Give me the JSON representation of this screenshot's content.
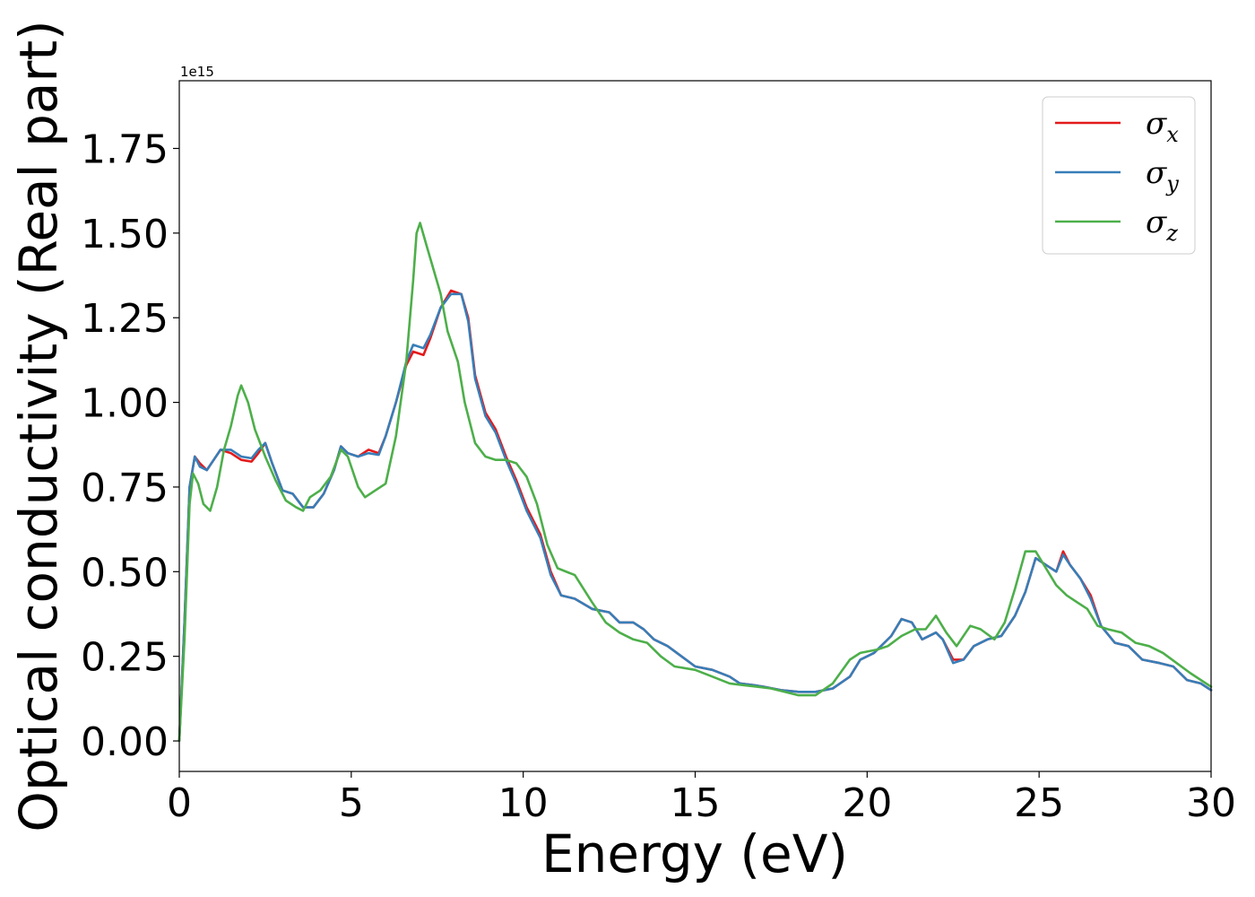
{
  "chart_data": {
    "type": "line",
    "xlabel": "Energy (eV)",
    "ylabel": "Optical conductivity (Real part)",
    "offset_text": "1e15",
    "xlim": [
      0,
      30
    ],
    "ylim": [
      -0.09,
      1.95
    ],
    "x_ticks": [
      0,
      5,
      10,
      15,
      20,
      25,
      30
    ],
    "x_tick_labels": [
      "0",
      "5",
      "10",
      "15",
      "20",
      "25",
      "30"
    ],
    "y_ticks": [
      0,
      0.25,
      0.5,
      0.75,
      1.0,
      1.25,
      1.5,
      1.75
    ],
    "y_tick_labels": [
      "0.00",
      "0.25",
      "0.50",
      "0.75",
      "1.00",
      "1.25",
      "1.50",
      "1.75"
    ],
    "grid": false,
    "legend_position": "top-right",
    "series": [
      {
        "name": "σ",
        "subscript": "x",
        "color": "#e41a1c",
        "points": [
          [
            0,
            0.0
          ],
          [
            0.15,
            0.35
          ],
          [
            0.3,
            0.75
          ],
          [
            0.45,
            0.84
          ],
          [
            0.6,
            0.82
          ],
          [
            0.8,
            0.8
          ],
          [
            1.0,
            0.83
          ],
          [
            1.2,
            0.86
          ],
          [
            1.5,
            0.85
          ],
          [
            1.8,
            0.83
          ],
          [
            2.1,
            0.825
          ],
          [
            2.3,
            0.85
          ],
          [
            2.5,
            0.88
          ],
          [
            2.7,
            0.82
          ],
          [
            3.0,
            0.74
          ],
          [
            3.3,
            0.73
          ],
          [
            3.6,
            0.69
          ],
          [
            3.9,
            0.69
          ],
          [
            4.2,
            0.73
          ],
          [
            4.5,
            0.8
          ],
          [
            4.7,
            0.87
          ],
          [
            4.9,
            0.85
          ],
          [
            5.2,
            0.84
          ],
          [
            5.5,
            0.86
          ],
          [
            5.8,
            0.85
          ],
          [
            6.0,
            0.9
          ],
          [
            6.3,
            1.0
          ],
          [
            6.6,
            1.11
          ],
          [
            6.8,
            1.15
          ],
          [
            7.1,
            1.14
          ],
          [
            7.3,
            1.19
          ],
          [
            7.6,
            1.28
          ],
          [
            7.9,
            1.33
          ],
          [
            8.2,
            1.32
          ],
          [
            8.4,
            1.25
          ],
          [
            8.6,
            1.08
          ],
          [
            8.9,
            0.97
          ],
          [
            9.2,
            0.92
          ],
          [
            9.5,
            0.84
          ],
          [
            9.8,
            0.77
          ],
          [
            10.1,
            0.69
          ],
          [
            10.5,
            0.61
          ],
          [
            10.8,
            0.5
          ],
          [
            11.1,
            0.43
          ],
          [
            11.5,
            0.42
          ],
          [
            12.0,
            0.39
          ],
          [
            12.5,
            0.38
          ],
          [
            12.8,
            0.35
          ],
          [
            13.2,
            0.35
          ],
          [
            13.5,
            0.33
          ],
          [
            13.8,
            0.3
          ],
          [
            14.2,
            0.28
          ],
          [
            14.6,
            0.25
          ],
          [
            15.0,
            0.22
          ],
          [
            15.5,
            0.21
          ],
          [
            16.0,
            0.19
          ],
          [
            16.3,
            0.17
          ],
          [
            16.7,
            0.165
          ],
          [
            17.0,
            0.16
          ],
          [
            17.5,
            0.15
          ],
          [
            18.0,
            0.145
          ],
          [
            18.5,
            0.145
          ],
          [
            19.0,
            0.155
          ],
          [
            19.5,
            0.19
          ],
          [
            19.8,
            0.24
          ],
          [
            20.2,
            0.26
          ],
          [
            20.7,
            0.31
          ],
          [
            21.0,
            0.36
          ],
          [
            21.3,
            0.35
          ],
          [
            21.6,
            0.3
          ],
          [
            22.0,
            0.32
          ],
          [
            22.2,
            0.3
          ],
          [
            22.5,
            0.24
          ],
          [
            22.8,
            0.24
          ],
          [
            23.1,
            0.28
          ],
          [
            23.5,
            0.3
          ],
          [
            23.9,
            0.31
          ],
          [
            24.3,
            0.37
          ],
          [
            24.6,
            0.44
          ],
          [
            24.9,
            0.54
          ],
          [
            25.2,
            0.52
          ],
          [
            25.5,
            0.5
          ],
          [
            25.7,
            0.56
          ],
          [
            25.9,
            0.52
          ],
          [
            26.2,
            0.48
          ],
          [
            26.5,
            0.43
          ],
          [
            26.8,
            0.34
          ],
          [
            27.2,
            0.29
          ],
          [
            27.6,
            0.28
          ],
          [
            28.0,
            0.24
          ],
          [
            28.5,
            0.23
          ],
          [
            28.9,
            0.22
          ],
          [
            29.3,
            0.18
          ],
          [
            29.7,
            0.17
          ],
          [
            30.0,
            0.15
          ]
        ]
      },
      {
        "name": "σ",
        "subscript": "y",
        "color": "#377eb8",
        "points": [
          [
            0,
            0.0
          ],
          [
            0.15,
            0.35
          ],
          [
            0.3,
            0.75
          ],
          [
            0.45,
            0.84
          ],
          [
            0.6,
            0.81
          ],
          [
            0.8,
            0.8
          ],
          [
            1.0,
            0.83
          ],
          [
            1.2,
            0.86
          ],
          [
            1.5,
            0.86
          ],
          [
            1.8,
            0.84
          ],
          [
            2.1,
            0.835
          ],
          [
            2.3,
            0.86
          ],
          [
            2.5,
            0.88
          ],
          [
            2.7,
            0.82
          ],
          [
            3.0,
            0.74
          ],
          [
            3.3,
            0.73
          ],
          [
            3.6,
            0.69
          ],
          [
            3.9,
            0.69
          ],
          [
            4.2,
            0.73
          ],
          [
            4.5,
            0.8
          ],
          [
            4.7,
            0.87
          ],
          [
            4.9,
            0.85
          ],
          [
            5.2,
            0.84
          ],
          [
            5.5,
            0.85
          ],
          [
            5.8,
            0.845
          ],
          [
            6.0,
            0.9
          ],
          [
            6.3,
            1.0
          ],
          [
            6.6,
            1.12
          ],
          [
            6.8,
            1.17
          ],
          [
            7.1,
            1.16
          ],
          [
            7.3,
            1.2
          ],
          [
            7.6,
            1.28
          ],
          [
            7.9,
            1.32
          ],
          [
            8.2,
            1.32
          ],
          [
            8.4,
            1.24
          ],
          [
            8.6,
            1.07
          ],
          [
            8.9,
            0.96
          ],
          [
            9.2,
            0.91
          ],
          [
            9.5,
            0.83
          ],
          [
            9.8,
            0.76
          ],
          [
            10.1,
            0.68
          ],
          [
            10.5,
            0.6
          ],
          [
            10.8,
            0.49
          ],
          [
            11.1,
            0.43
          ],
          [
            11.5,
            0.42
          ],
          [
            12.0,
            0.39
          ],
          [
            12.5,
            0.38
          ],
          [
            12.8,
            0.35
          ],
          [
            13.2,
            0.35
          ],
          [
            13.5,
            0.33
          ],
          [
            13.8,
            0.3
          ],
          [
            14.2,
            0.28
          ],
          [
            14.6,
            0.25
          ],
          [
            15.0,
            0.22
          ],
          [
            15.5,
            0.21
          ],
          [
            16.0,
            0.19
          ],
          [
            16.3,
            0.17
          ],
          [
            16.7,
            0.165
          ],
          [
            17.0,
            0.16
          ],
          [
            17.5,
            0.15
          ],
          [
            18.0,
            0.145
          ],
          [
            18.5,
            0.145
          ],
          [
            19.0,
            0.155
          ],
          [
            19.5,
            0.19
          ],
          [
            19.8,
            0.24
          ],
          [
            20.2,
            0.26
          ],
          [
            20.7,
            0.31
          ],
          [
            21.0,
            0.36
          ],
          [
            21.3,
            0.35
          ],
          [
            21.6,
            0.3
          ],
          [
            22.0,
            0.32
          ],
          [
            22.2,
            0.3
          ],
          [
            22.5,
            0.23
          ],
          [
            22.8,
            0.24
          ],
          [
            23.1,
            0.28
          ],
          [
            23.5,
            0.3
          ],
          [
            23.9,
            0.31
          ],
          [
            24.3,
            0.37
          ],
          [
            24.6,
            0.44
          ],
          [
            24.9,
            0.54
          ],
          [
            25.2,
            0.52
          ],
          [
            25.5,
            0.5
          ],
          [
            25.7,
            0.55
          ],
          [
            25.9,
            0.52
          ],
          [
            26.2,
            0.48
          ],
          [
            26.5,
            0.42
          ],
          [
            26.8,
            0.34
          ],
          [
            27.2,
            0.29
          ],
          [
            27.6,
            0.28
          ],
          [
            28.0,
            0.24
          ],
          [
            28.5,
            0.23
          ],
          [
            28.9,
            0.22
          ],
          [
            29.3,
            0.18
          ],
          [
            29.7,
            0.17
          ],
          [
            30.0,
            0.15
          ]
        ]
      },
      {
        "name": "σ",
        "subscript": "z",
        "color": "#4daf4a",
        "points": [
          [
            0,
            0.0
          ],
          [
            0.15,
            0.3
          ],
          [
            0.3,
            0.7
          ],
          [
            0.4,
            0.79
          ],
          [
            0.55,
            0.76
          ],
          [
            0.7,
            0.7
          ],
          [
            0.9,
            0.68
          ],
          [
            1.1,
            0.75
          ],
          [
            1.3,
            0.86
          ],
          [
            1.5,
            0.93
          ],
          [
            1.7,
            1.02
          ],
          [
            1.8,
            1.05
          ],
          [
            2.0,
            1.0
          ],
          [
            2.2,
            0.92
          ],
          [
            2.5,
            0.84
          ],
          [
            2.8,
            0.77
          ],
          [
            3.1,
            0.71
          ],
          [
            3.4,
            0.69
          ],
          [
            3.6,
            0.68
          ],
          [
            3.8,
            0.72
          ],
          [
            4.1,
            0.74
          ],
          [
            4.4,
            0.78
          ],
          [
            4.7,
            0.86
          ],
          [
            4.9,
            0.84
          ],
          [
            5.2,
            0.75
          ],
          [
            5.4,
            0.72
          ],
          [
            5.7,
            0.74
          ],
          [
            6.0,
            0.76
          ],
          [
            6.3,
            0.9
          ],
          [
            6.6,
            1.12
          ],
          [
            6.8,
            1.36
          ],
          [
            6.9,
            1.5
          ],
          [
            7.0,
            1.53
          ],
          [
            7.2,
            1.46
          ],
          [
            7.4,
            1.39
          ],
          [
            7.6,
            1.32
          ],
          [
            7.8,
            1.21
          ],
          [
            8.1,
            1.12
          ],
          [
            8.3,
            1.0
          ],
          [
            8.6,
            0.88
          ],
          [
            8.9,
            0.84
          ],
          [
            9.2,
            0.83
          ],
          [
            9.5,
            0.83
          ],
          [
            9.8,
            0.82
          ],
          [
            10.1,
            0.78
          ],
          [
            10.4,
            0.7
          ],
          [
            10.7,
            0.58
          ],
          [
            11.0,
            0.51
          ],
          [
            11.5,
            0.49
          ],
          [
            12.0,
            0.41
          ],
          [
            12.4,
            0.35
          ],
          [
            12.8,
            0.32
          ],
          [
            13.2,
            0.3
          ],
          [
            13.6,
            0.29
          ],
          [
            14.0,
            0.25
          ],
          [
            14.4,
            0.22
          ],
          [
            15.0,
            0.21
          ],
          [
            15.5,
            0.19
          ],
          [
            16.0,
            0.17
          ],
          [
            16.4,
            0.165
          ],
          [
            16.8,
            0.16
          ],
          [
            17.2,
            0.155
          ],
          [
            17.6,
            0.145
          ],
          [
            18.0,
            0.135
          ],
          [
            18.5,
            0.135
          ],
          [
            19.0,
            0.17
          ],
          [
            19.5,
            0.24
          ],
          [
            19.8,
            0.26
          ],
          [
            20.3,
            0.27
          ],
          [
            20.6,
            0.28
          ],
          [
            21.0,
            0.31
          ],
          [
            21.4,
            0.33
          ],
          [
            21.7,
            0.33
          ],
          [
            22.0,
            0.37
          ],
          [
            22.3,
            0.32
          ],
          [
            22.6,
            0.28
          ],
          [
            23.0,
            0.34
          ],
          [
            23.3,
            0.33
          ],
          [
            23.7,
            0.3
          ],
          [
            24.0,
            0.35
          ],
          [
            24.3,
            0.45
          ],
          [
            24.6,
            0.56
          ],
          [
            24.9,
            0.56
          ],
          [
            25.2,
            0.51
          ],
          [
            25.5,
            0.46
          ],
          [
            25.8,
            0.43
          ],
          [
            26.1,
            0.41
          ],
          [
            26.4,
            0.39
          ],
          [
            26.7,
            0.34
          ],
          [
            27.0,
            0.33
          ],
          [
            27.4,
            0.32
          ],
          [
            27.8,
            0.29
          ],
          [
            28.2,
            0.28
          ],
          [
            28.6,
            0.26
          ],
          [
            29.0,
            0.23
          ],
          [
            29.4,
            0.2
          ],
          [
            30.0,
            0.16
          ]
        ]
      }
    ]
  }
}
